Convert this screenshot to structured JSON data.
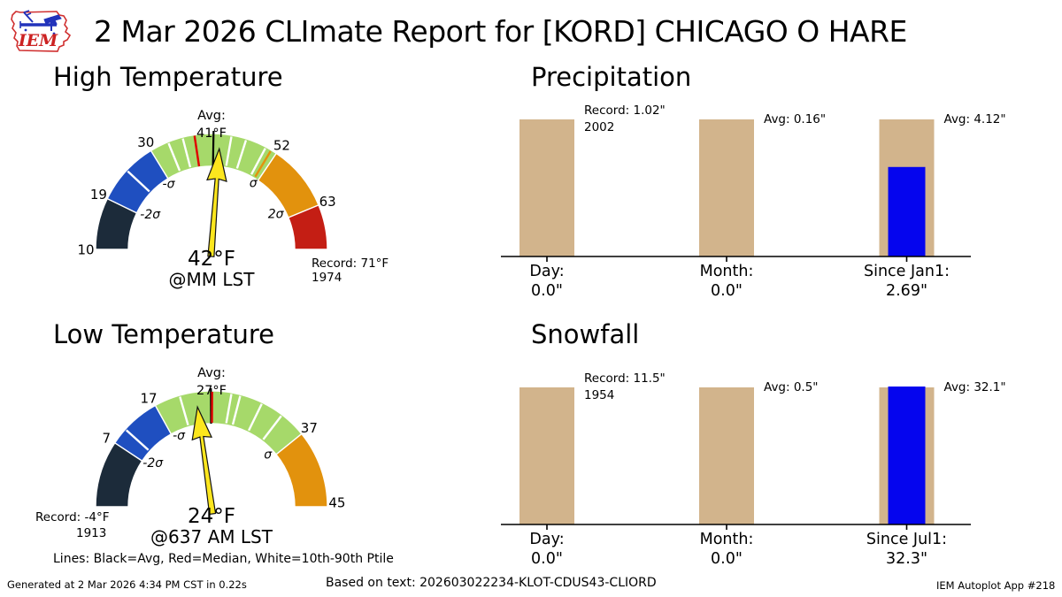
{
  "header": {
    "title": "2 Mar 2026 CLImate Report for [KORD] CHICAGO O HARE",
    "logo_text": "IEM"
  },
  "legend_note": "Lines: Black=Avg, Red=Median, White=10th-90th Ptile",
  "footer": {
    "generated": "Generated at 2 Mar 2026 4:34 PM CST in 0.22s",
    "based_on": "Based on text: 202603022234-KLOT-CDUS43-CLIORD",
    "app": "IEM Autoplot App #218"
  },
  "colors": {
    "seg_black": "#1C2B3A",
    "seg_blue": "#1F4FC0",
    "seg_green": "#A6D96A",
    "seg_orange": "#E2920D",
    "seg_red": "#C41E14",
    "needle_yellow": "#FCE61E",
    "median_red": "#E00000",
    "avg_black": "#000000",
    "ptile_white": "#FFFFFF",
    "bar_tan": "#D2B48C",
    "bar_blue": "#0505EE",
    "logo_red": "#D03030",
    "logo_blue": "#2233BB"
  },
  "chart_data": [
    {
      "type": "gauge",
      "title": "High Temperature",
      "value": 42,
      "value_label": "42°F",
      "time_label": "@MM LST",
      "avg_value": 41,
      "avg_lines": [
        "Avg:",
        "41°F"
      ],
      "record_value": 71,
      "record_year": 1974,
      "record_lines": [
        "Record: 71°F",
        "1974"
      ],
      "scale_min": 10,
      "scale_max": 71,
      "sigma_boundaries": {
        "minus2": 19,
        "minus1": 30,
        "plus1": 52,
        "plus2": 63
      },
      "geom": {
        "segments": [
          {
            "color": "#1C2B3A",
            "a0": 0,
            "a1": 26
          },
          {
            "color": "#1F4FC0",
            "a0": 26,
            "a1": 58.5
          },
          {
            "color": "#A6D96A",
            "a0": 58.5,
            "a1": 124
          },
          {
            "color": "#E2920D",
            "a0": 124,
            "a1": 157.5
          },
          {
            "color": "#C41E14",
            "a0": 157.5,
            "a1": 180
          }
        ],
        "ticks": [
          {
            "a": 43
          },
          {
            "a": 68
          },
          {
            "a": 75.5
          },
          {
            "a": 100
          },
          {
            "a": 107.5
          },
          {
            "a": 118
          },
          {
            "a": 121,
            "color": "#E2920D"
          }
        ],
        "median_angle": 81.5,
        "avg_angle": 91,
        "needle_angle": 94.4,
        "scale_labels": [
          {
            "t": "10",
            "a": 0
          },
          {
            "t": "19",
            "a": 26
          },
          {
            "t": "30",
            "a": 58.5
          },
          {
            "t": "52",
            "a": 124
          },
          {
            "t": "63",
            "a": 157.5
          }
        ],
        "sigma_labels": [
          {
            "t": "-2σ",
            "a": 30,
            "r": 80
          },
          {
            "t": "-σ",
            "a": 57,
            "r": 89
          },
          {
            "t": "σ",
            "a": 122,
            "r": 89
          },
          {
            "t": "2σ",
            "a": 151,
            "r": 83
          }
        ],
        "record_xy": [
          [
            352,
            217
          ],
          [
            352,
            233
          ]
        ]
      }
    },
    {
      "type": "gauge",
      "title": "Low Temperature",
      "value": 24,
      "value_label": "24°F",
      "time_label": "@637 AM LST",
      "avg_value": 27,
      "avg_lines": [
        "Avg:",
        "27°F"
      ],
      "record_value": -4,
      "record_year": 1913,
      "record_lines": [
        "Record: -4°F",
        "1913"
      ],
      "scale_min": -4,
      "scale_max": 45,
      "sigma_boundaries": {
        "minus2": 7,
        "minus1": 17,
        "plus1": 37
      },
      "geom": {
        "segments": [
          {
            "color": "#1C2B3A",
            "a0": 0,
            "a1": 33.5
          },
          {
            "color": "#1F4FC0",
            "a0": 33.5,
            "a1": 61
          },
          {
            "color": "#A6D96A",
            "a0": 61,
            "a1": 141
          },
          {
            "color": "#E2920D",
            "a0": 141,
            "a1": 180
          }
        ],
        "ticks": [
          {
            "a": 42
          },
          {
            "a": 74
          },
          {
            "a": 100
          },
          {
            "a": 104.5
          },
          {
            "a": 116
          },
          {
            "a": 127.5
          }
        ],
        "median_angle": 90.3,
        "avg_angle": 89.7,
        "needle_angle": 82,
        "scale_labels": [
          {
            "t": "7",
            "a": 33.3
          },
          {
            "t": "17",
            "a": 60
          },
          {
            "t": "37",
            "a": 141
          },
          {
            "t": "45",
            "a": 178
          }
        ],
        "sigma_labels": [
          {
            "t": "-2σ",
            "a": 37,
            "r": 83
          },
          {
            "t": "-σ",
            "a": 65.5,
            "r": 89
          },
          {
            "t": "σ",
            "a": 137,
            "r": 87
          }
        ],
        "record_xy": [
          [
            40,
            213
          ],
          [
            86,
            231
          ]
        ]
      }
    },
    {
      "type": "bar",
      "title": "Precipitation",
      "bars": [
        {
          "label": "Day:",
          "value": 0.0,
          "value_label": "0.0\"",
          "ref": 1.02,
          "note_lines": [
            "Record: 1.02\"",
            "2002"
          ]
        },
        {
          "label": "Month:",
          "value": 0.0,
          "value_label": "0.0\"",
          "ref": 0.16,
          "note_lines": [
            "Avg: 0.16\""
          ]
        },
        {
          "label": "Since Jan1:",
          "value": 2.69,
          "value_label": "2.69\"",
          "ref": 4.12,
          "note_lines": [
            "Avg: 4.12\""
          ]
        }
      ]
    },
    {
      "type": "bar",
      "title": "Snowfall",
      "bars": [
        {
          "label": "Day:",
          "value": 0.0,
          "value_label": "0.0\"",
          "ref": 11.5,
          "note_lines": [
            "Record: 11.5\"",
            "1954"
          ]
        },
        {
          "label": "Month:",
          "value": 0.0,
          "value_label": "0.0\"",
          "ref": 0.5,
          "note_lines": [
            "Avg: 0.5\""
          ]
        },
        {
          "label": "Since Jul1:",
          "value": 32.3,
          "value_label": "32.3\"",
          "ref": 32.1,
          "note_lines": [
            "Avg: 32.1\""
          ]
        }
      ]
    }
  ]
}
